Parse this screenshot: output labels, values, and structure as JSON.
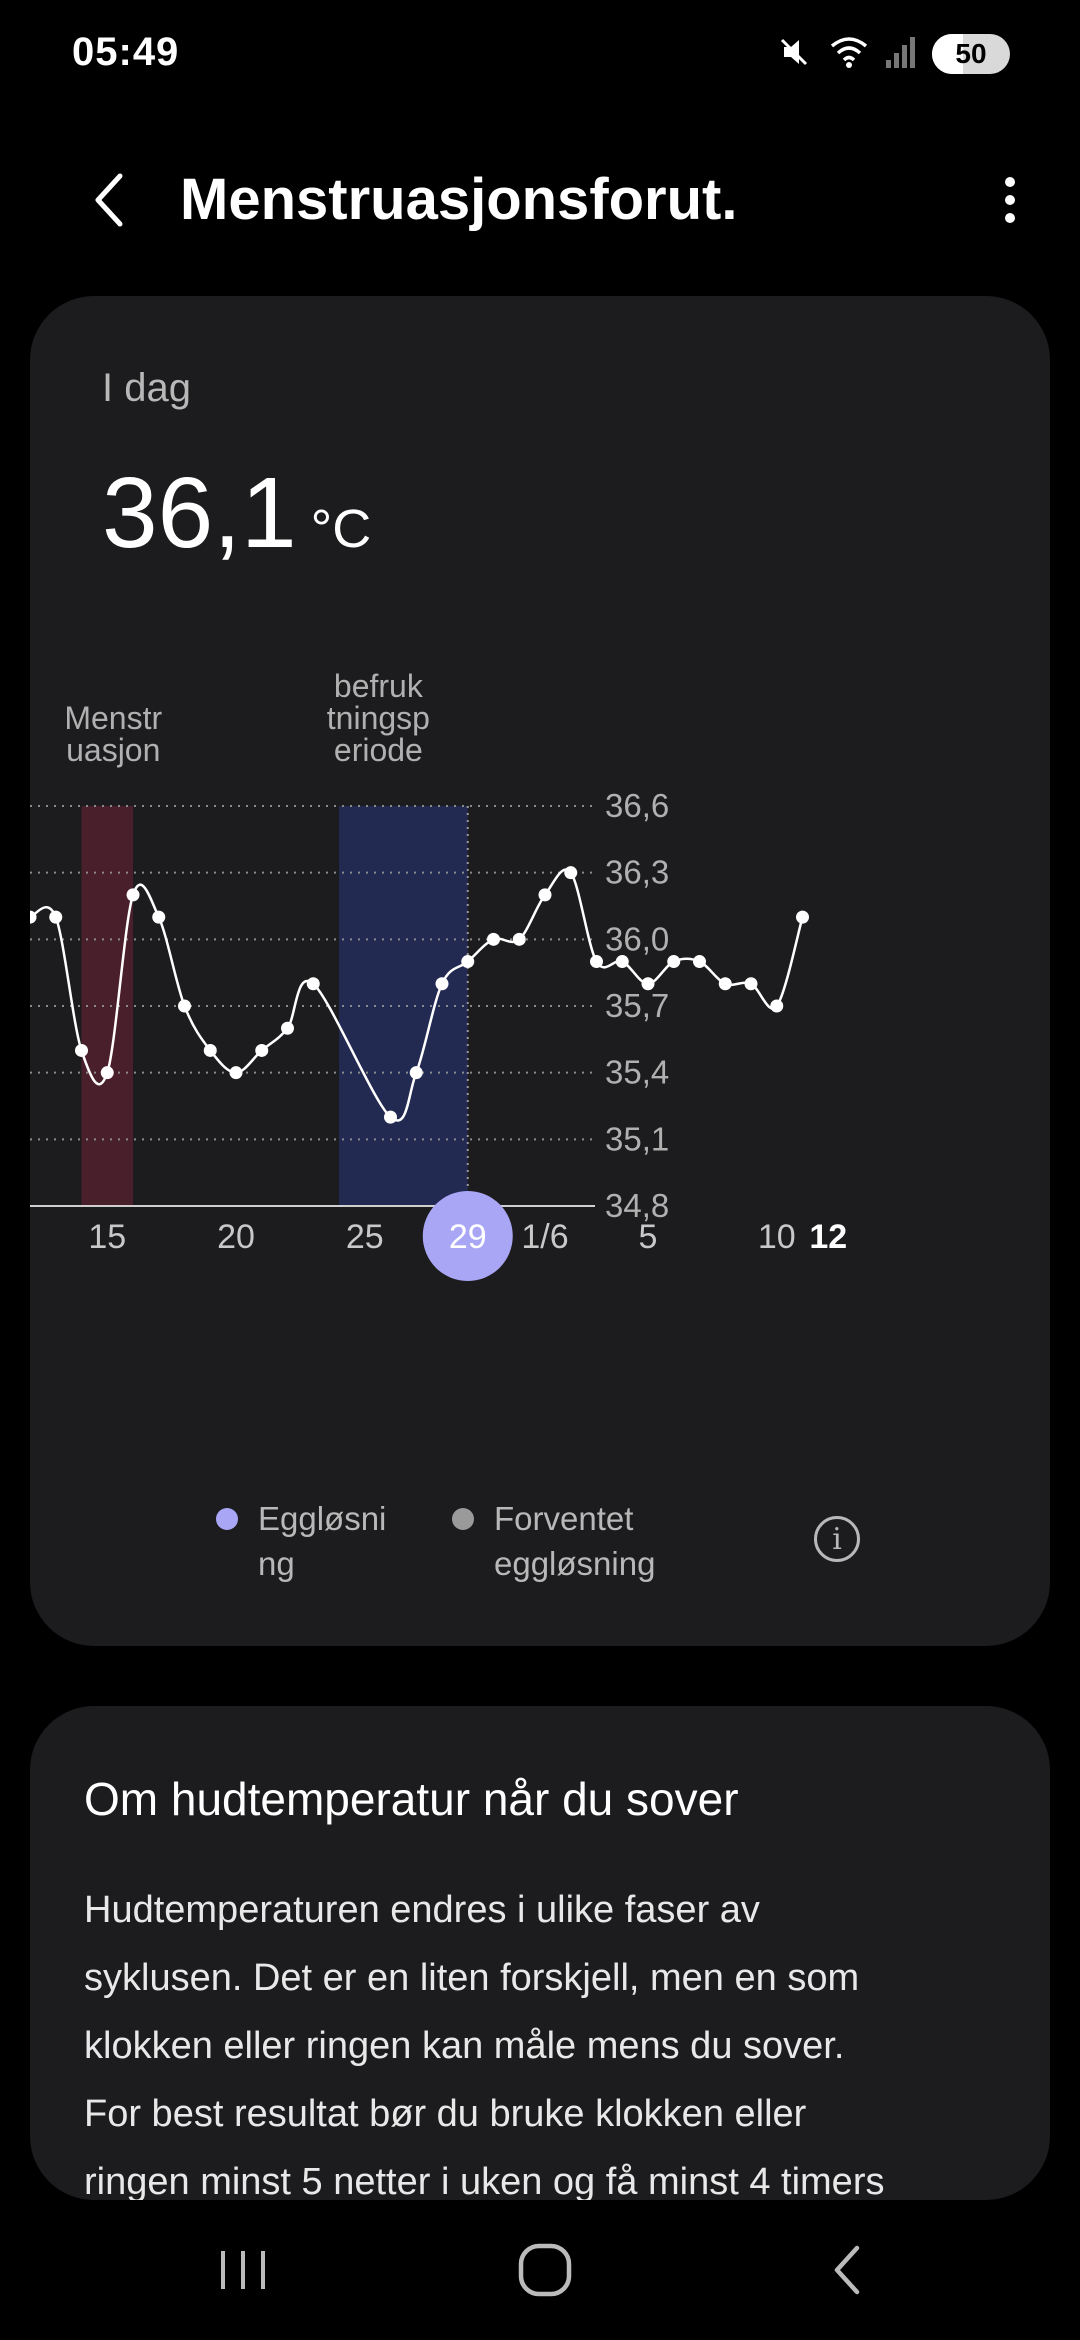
{
  "status_bar": {
    "time": "05:49",
    "battery": "50",
    "icons": [
      "mute-icon",
      "wifi-icon",
      "signal-icon"
    ]
  },
  "app_bar": {
    "title": "Menstruasjonsforut."
  },
  "today": {
    "label": "I dag",
    "value": "36,1",
    "unit": "°C"
  },
  "chart_data": {
    "type": "line",
    "phase_labels": {
      "menstruation": [
        "Menstr",
        "uasjon"
      ],
      "fertile": [
        "befruk",
        "tningsp",
        "eriode"
      ]
    },
    "phases": [
      {
        "name": "menstruation",
        "start": 2,
        "end": 4,
        "color": "#4a1f2c"
      },
      {
        "name": "fertile",
        "start": 12,
        "end": 17,
        "color": "#232a52"
      }
    ],
    "y_ticks": [
      "36,6",
      "36,3",
      "36,0",
      "35,7",
      "35,4",
      "35,1",
      "34,8"
    ],
    "ylim": [
      34.8,
      36.6
    ],
    "x_ticks": [
      {
        "label": "15",
        "index": 3
      },
      {
        "label": "20",
        "index": 8
      },
      {
        "label": "25",
        "index": 13
      },
      {
        "label": "29",
        "index": 17,
        "selected": true
      },
      {
        "label": "1/6",
        "index": 20
      },
      {
        "label": "5",
        "index": 24
      },
      {
        "label": "10",
        "index": 29
      },
      {
        "label": "12",
        "index": 31,
        "bold": true
      }
    ],
    "x": [
      0,
      1,
      2,
      3,
      4,
      5,
      6,
      7,
      8,
      9,
      10,
      11,
      12,
      13,
      14,
      15,
      16,
      17,
      18,
      19,
      20,
      21,
      22,
      23,
      24,
      25,
      26,
      27,
      28,
      29,
      30,
      31
    ],
    "values": [
      36.1,
      36.1,
      35.5,
      35.4,
      36.2,
      36.1,
      35.7,
      35.5,
      35.4,
      35.5,
      35.6,
      35.8,
      null,
      null,
      35.2,
      35.4,
      35.8,
      35.9,
      36.0,
      36.0,
      36.2,
      36.3,
      35.9,
      35.9,
      35.8,
      35.9,
      35.9,
      35.8,
      35.8,
      35.7,
      36.1,
      null
    ],
    "colors": {
      "line": "#ffffff",
      "grid": "#8a8a8a",
      "selected": "#a9a7f5"
    }
  },
  "legend": {
    "ovulation": {
      "lines": [
        "Eggløsni",
        "ng"
      ],
      "color": "#a9a7f5"
    },
    "expected": {
      "lines": [
        "Forventet",
        "eggløsning"
      ],
      "color": "#9a9a9a"
    },
    "info_icon": "i"
  },
  "about": {
    "title": "Om hudtemperatur når du sover",
    "lines": [
      "Hudtemperaturen endres i ulike faser av",
      "syklusen. Det er en liten forskjell, men en som",
      "klokken eller ringen kan måle mens du sover.",
      "For best resultat bør du bruke klokken eller",
      "ringen minst 5 netter i uken og få minst 4 timers"
    ]
  },
  "nav": {
    "icons": [
      "recent-apps-icon",
      "home-icon",
      "back-icon"
    ]
  }
}
